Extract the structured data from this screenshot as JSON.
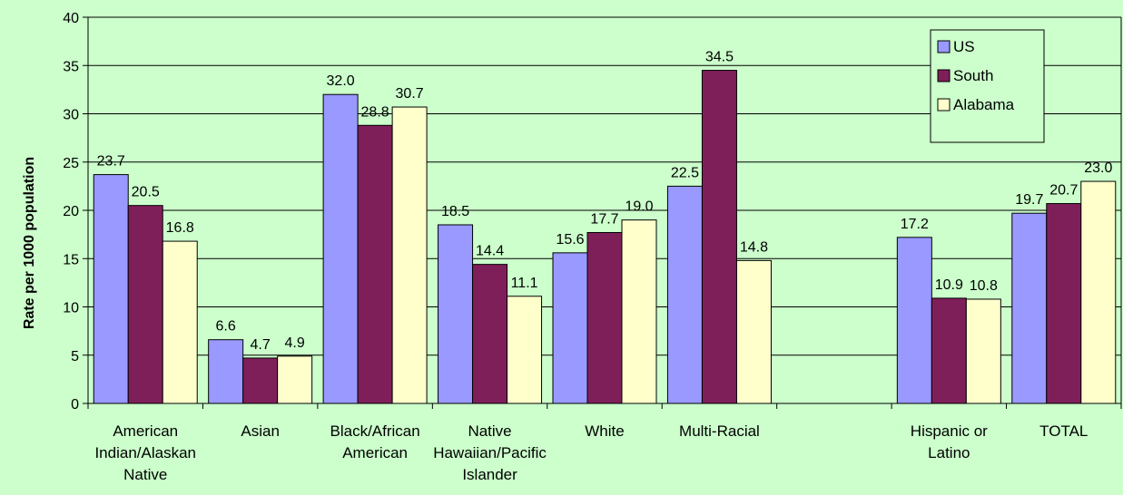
{
  "chart_data": {
    "type": "bar",
    "title": "",
    "xlabel": "",
    "ylabel": "Rate per 1000 population",
    "ylim": [
      0,
      40
    ],
    "yticks": [
      0,
      5,
      10,
      15,
      20,
      25,
      30,
      35,
      40
    ],
    "grid": true,
    "legend_position": "top-right",
    "categories": [
      [
        "American",
        "Indian/Alaskan",
        "Native"
      ],
      [
        "Asian"
      ],
      [
        "Black/African",
        "American"
      ],
      [
        "Native",
        "Hawaiian/Pacific",
        "Islander"
      ],
      [
        "White"
      ],
      [
        "Multi-Racial"
      ],
      [
        ""
      ],
      [
        "Hispanic or",
        "Latino"
      ],
      [
        "TOTAL"
      ]
    ],
    "series": [
      {
        "name": "US",
        "color": "#9999ff",
        "values": [
          23.7,
          6.6,
          32.0,
          18.5,
          15.6,
          22.5,
          null,
          17.2,
          19.7
        ]
      },
      {
        "name": "South",
        "color": "#7f1f5a",
        "values": [
          20.5,
          4.7,
          28.8,
          14.4,
          17.7,
          34.5,
          null,
          10.9,
          20.7
        ]
      },
      {
        "name": "Alabama",
        "color": "#ffffcc",
        "values": [
          16.8,
          4.9,
          30.7,
          11.1,
          19.0,
          14.8,
          null,
          10.8,
          23.0
        ]
      }
    ]
  }
}
